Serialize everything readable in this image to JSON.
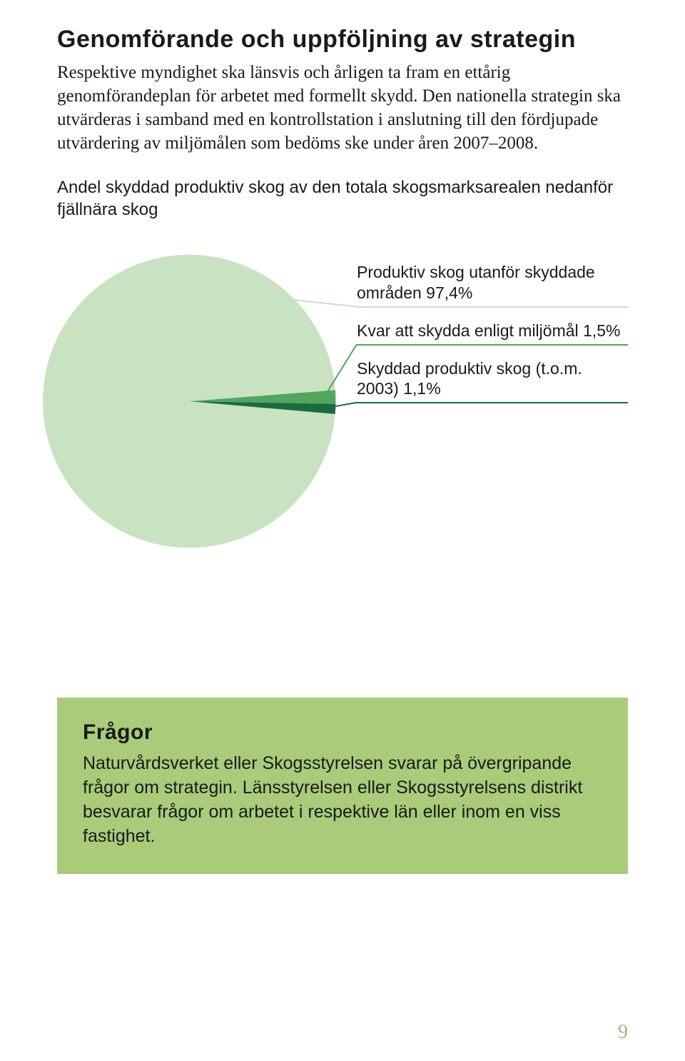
{
  "section": {
    "heading": "Genomförande och uppföljning av strategin",
    "body": "Respektive myndighet ska länsvis och årligen ta fram en ettårig genomförandeplan för arbetet med formellt skydd. Den nationella strategin ska utvärderas i samband med en kontrollstation i anslutning till den fördjupade utvärdering av miljömålen som bedöms ske under åren 2007–2008."
  },
  "chart": {
    "title": "Andel skyddad produktiv skog av den totala skogsmarksarealen nedanför fjällnära skog",
    "type": "pie",
    "background_color": "#ffffff",
    "slices": [
      {
        "label": "Produktiv skog utanför skyddade områden 97,4%",
        "value": 97.4,
        "color": "#c9e2c1",
        "leader_color": "#c9e2c1"
      },
      {
        "label": "Kvar att skydda enligt miljömål 1,5%",
        "value": 1.5,
        "color": "#51a55f",
        "leader_color": "#51a55f"
      },
      {
        "label": "Skyddad produktiv skog (t.o.m. 2003) 1,1%",
        "value": 1.1,
        "color": "#1b6b3f",
        "leader_color": "#1b6b3f"
      }
    ],
    "label_fontsize": 23,
    "title_fontsize": 24
  },
  "questions": {
    "heading": "Frågor",
    "body": "Naturvårdsverket eller Skogsstyrelsen svarar på övergripande frågor om strategin. Länsstyrelsen eller Skogsstyrelsens distrikt besvarar frågor om arbetet i respektive län eller inom en viss fastighet.",
    "box_color": "#a9cb7a"
  },
  "page_number": "9",
  "page_number_color": "#9db98a"
}
